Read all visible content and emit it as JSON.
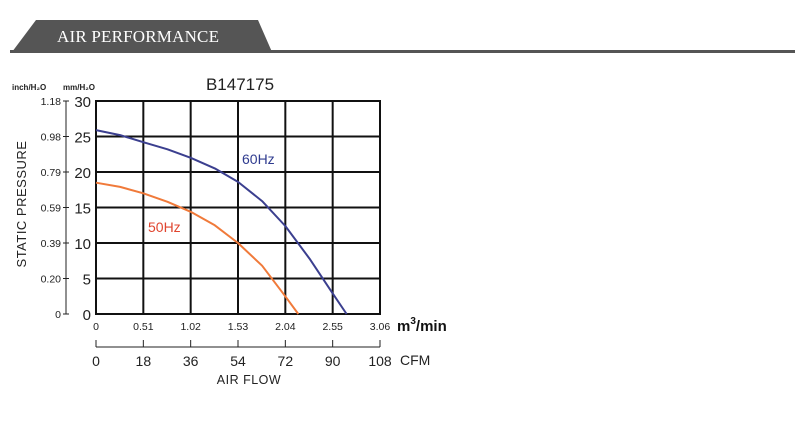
{
  "section": {
    "title": "AIR PERFORMANCE"
  },
  "colors": {
    "band": "#555555",
    "grid": "#111111",
    "s60": "#3b3f8f",
    "s50": "#f07a3a",
    "label60": "#2f3b8f",
    "label50": "#e0452f"
  },
  "chart_data": {
    "type": "line",
    "title": "B147175",
    "xlabel": "AIR FLOW",
    "ylabel": "STATIC PRESSURE",
    "x_unit_primary": "m³/min",
    "x_unit_primary_base": "m",
    "x_unit_primary_sup": "3",
    "x_unit_primary_tail": "/min",
    "x_unit_secondary": "CFM",
    "y_unit_primary": "mm/H₂O",
    "y_unit_secondary": "inch/H₂O",
    "xlim": [
      0,
      3.06
    ],
    "ylim": [
      0,
      30
    ],
    "grid": true,
    "x_ticks_m3min": [
      "0",
      "0.51",
      "1.02",
      "1.53",
      "2.04",
      "2.55",
      "3.06"
    ],
    "x_ticks_cfm": [
      "0",
      "18",
      "36",
      "54",
      "72",
      "90",
      "108"
    ],
    "y_ticks_mm": [
      "0",
      "5",
      "10",
      "15",
      "20",
      "25",
      "30"
    ],
    "y_ticks_inch": [
      "0",
      "0.20",
      "0.39",
      "0.59",
      "0.79",
      "0.98",
      "1.18"
    ],
    "series": [
      {
        "name": "60Hz",
        "color": "#3b3f8f",
        "x": [
          0,
          0.26,
          0.51,
          0.77,
          1.02,
          1.28,
          1.53,
          1.79,
          2.04,
          2.3,
          2.55,
          2.7
        ],
        "y": [
          25.9,
          25.2,
          24.2,
          23.2,
          22.0,
          20.5,
          18.6,
          15.9,
          12.4,
          7.8,
          2.9,
          0
        ]
      },
      {
        "name": "50Hz",
        "color": "#f07a3a",
        "x": [
          0,
          0.26,
          0.51,
          0.77,
          1.02,
          1.28,
          1.53,
          1.79,
          2.04,
          2.18
        ],
        "y": [
          18.5,
          17.9,
          17.0,
          15.8,
          14.4,
          12.5,
          10.0,
          6.8,
          2.5,
          0
        ]
      }
    ]
  }
}
